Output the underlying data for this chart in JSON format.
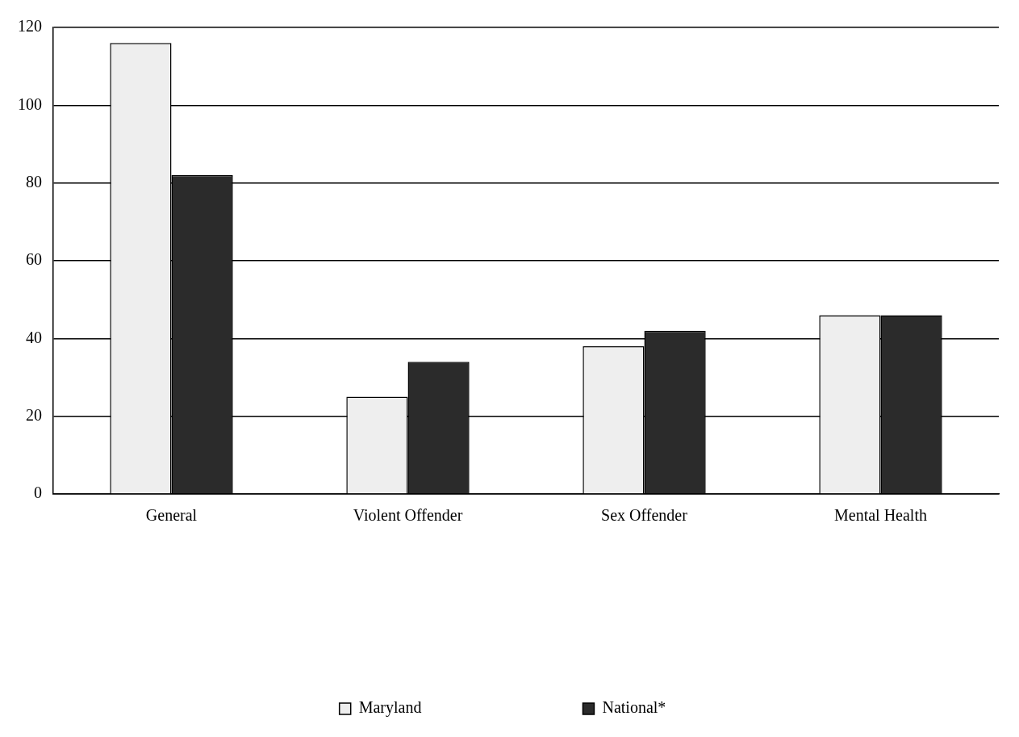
{
  "chart_data": {
    "type": "bar",
    "categories": [
      "General",
      "Violent Offender",
      "Sex Offender",
      "Mental Health"
    ],
    "series": [
      {
        "name": "Maryland",
        "color": "#eeeeee",
        "values": [
          116,
          25,
          38,
          46
        ]
      },
      {
        "name": "National*",
        "color": "#2b2b2b",
        "values": [
          82,
          34,
          42,
          46
        ]
      }
    ],
    "ylim": [
      0,
      120
    ],
    "yticks": [
      0,
      20,
      40,
      60,
      80,
      100,
      120
    ],
    "grid": "y",
    "legend": "bottom"
  }
}
